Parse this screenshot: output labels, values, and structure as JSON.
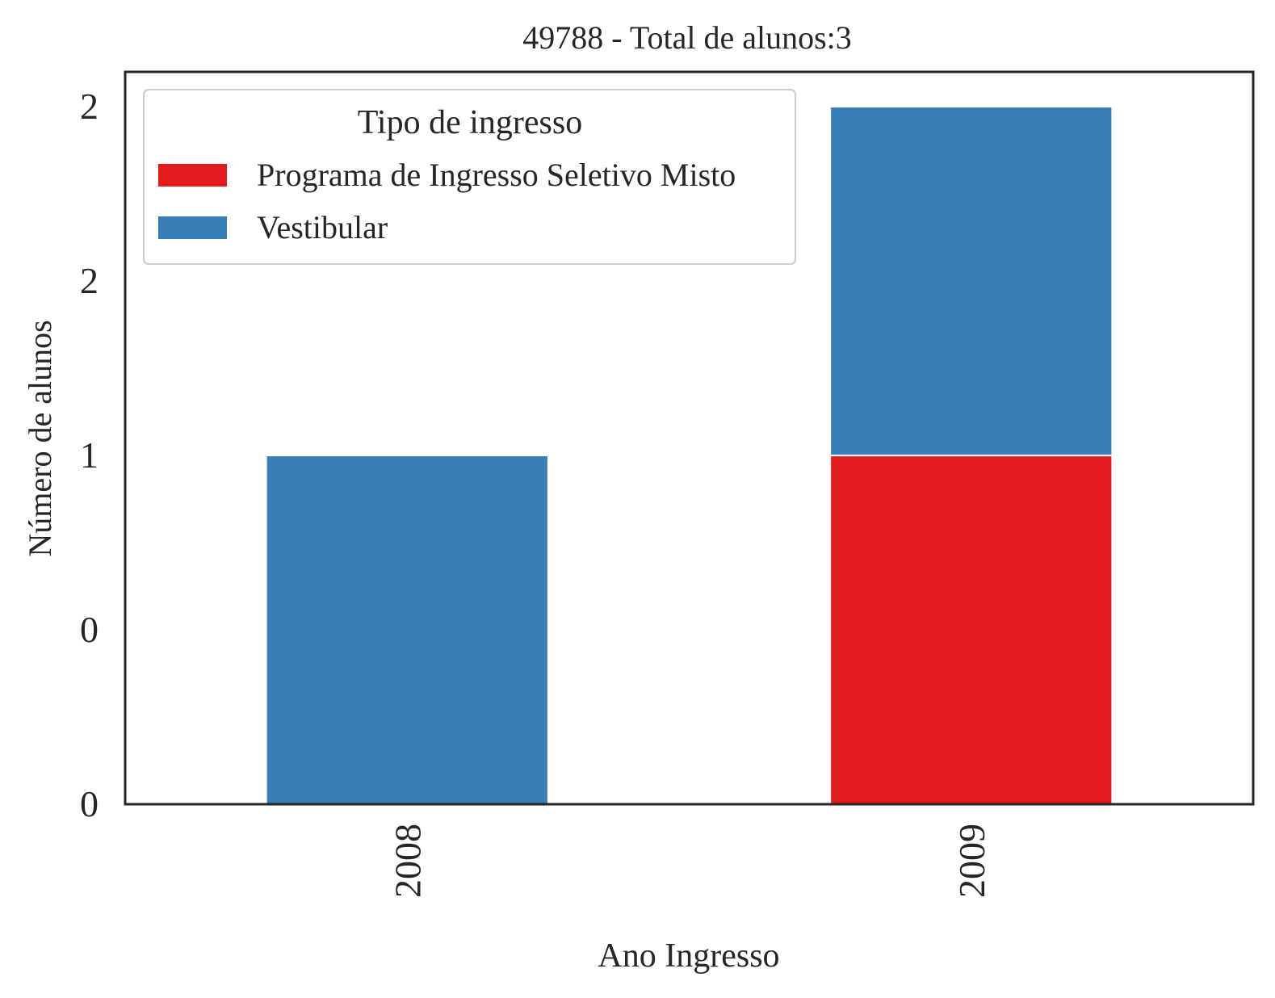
{
  "chart_data": {
    "type": "bar",
    "stacked": true,
    "title": "49788 - Total de alunos:3",
    "xlabel": "Ano Ingresso",
    "ylabel": "Número de alunos",
    "categories": [
      "2008",
      "2009"
    ],
    "series": [
      {
        "name": "Programa de Ingresso Seletivo Misto",
        "values": [
          0,
          1
        ],
        "color": "#e41a1c"
      },
      {
        "name": "Vestibular",
        "values": [
          1,
          1
        ],
        "color": "#377eb8"
      }
    ],
    "ylim": [
      0,
      2.1
    ],
    "yticks": [
      0,
      0.5,
      1.0,
      1.5,
      2.0
    ],
    "ytick_labels": [
      "0",
      "0",
      "1",
      "2",
      "2"
    ],
    "grid": false,
    "legend": {
      "title": "Tipo de ingresso",
      "placement": "top-left"
    }
  }
}
